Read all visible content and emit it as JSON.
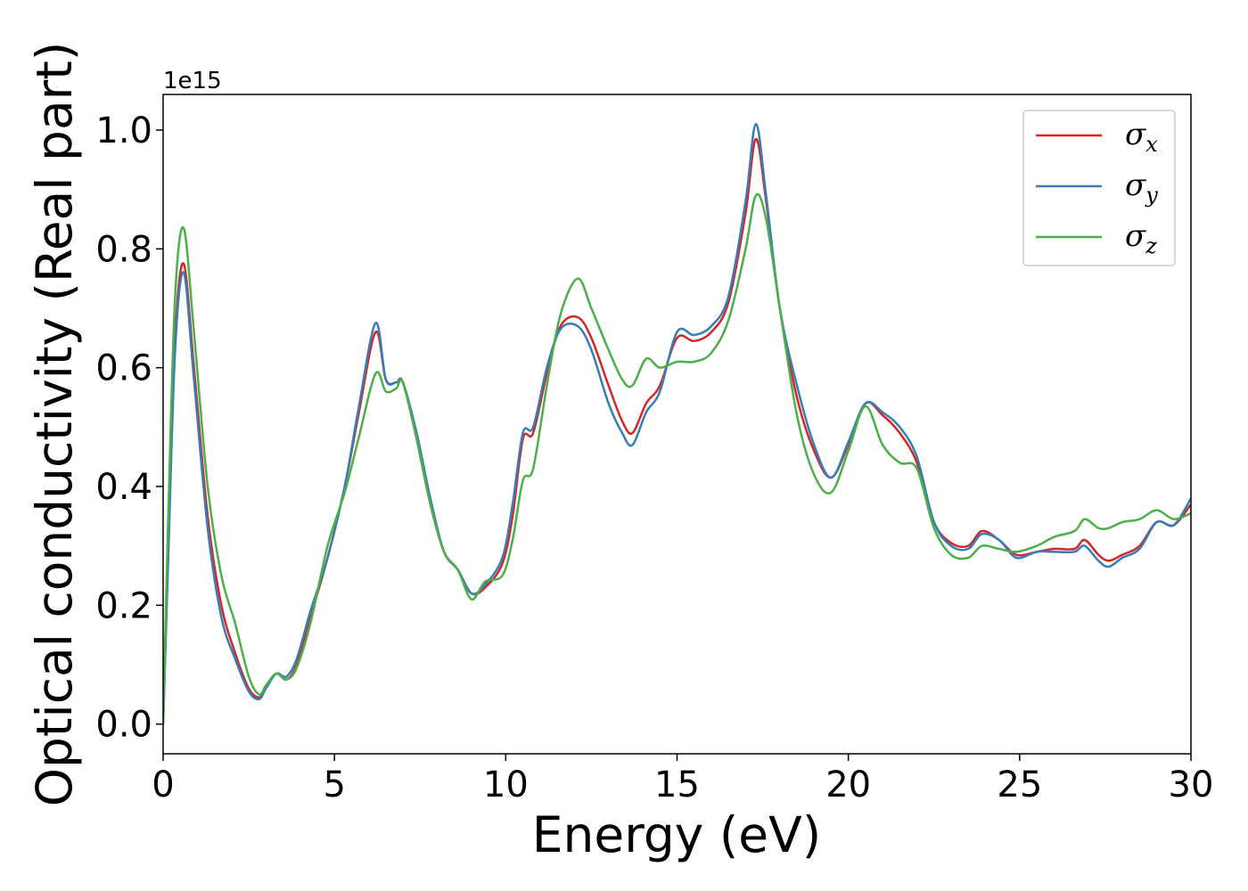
{
  "chart_data": {
    "type": "line",
    "title": "",
    "xlabel": "Energy (eV)",
    "ylabel": "Optical conductivity (Real part)",
    "y_offset_label": "1e15",
    "xlim": [
      0,
      30
    ],
    "ylim": [
      -0.05,
      1.06
    ],
    "x_ticks": [
      0,
      5,
      10,
      15,
      20,
      25,
      30
    ],
    "x_tick_labels": [
      "0",
      "5",
      "10",
      "15",
      "20",
      "25",
      "30"
    ],
    "y_ticks": [
      0.0,
      0.2,
      0.4,
      0.6,
      0.8,
      1.0
    ],
    "y_tick_labels": [
      "0.0",
      "0.2",
      "0.4",
      "0.6",
      "0.8",
      "1.0"
    ],
    "grid": false,
    "legend_position": "top-right",
    "series": [
      {
        "name": "σ_x",
        "legend_base": "σ",
        "legend_sub": "x",
        "color": "#d62728",
        "points": [
          [
            0,
            0
          ],
          [
            0.15,
            0.3
          ],
          [
            0.35,
            0.65
          ],
          [
            0.6,
            0.775
          ],
          [
            0.9,
            0.6
          ],
          [
            1.3,
            0.35
          ],
          [
            1.7,
            0.2
          ],
          [
            2.1,
            0.12
          ],
          [
            2.5,
            0.06
          ],
          [
            2.8,
            0.045
          ],
          [
            3.0,
            0.06
          ],
          [
            3.3,
            0.085
          ],
          [
            3.6,
            0.075
          ],
          [
            3.9,
            0.1
          ],
          [
            4.3,
            0.18
          ],
          [
            4.8,
            0.28
          ],
          [
            5.3,
            0.4
          ],
          [
            5.7,
            0.52
          ],
          [
            6.2,
            0.66
          ],
          [
            6.5,
            0.58
          ],
          [
            6.8,
            0.575
          ],
          [
            7.0,
            0.575
          ],
          [
            7.4,
            0.48
          ],
          [
            7.8,
            0.37
          ],
          [
            8.2,
            0.29
          ],
          [
            8.6,
            0.26
          ],
          [
            9.0,
            0.22
          ],
          [
            9.4,
            0.23
          ],
          [
            9.9,
            0.27
          ],
          [
            10.2,
            0.35
          ],
          [
            10.5,
            0.48
          ],
          [
            10.8,
            0.49
          ],
          [
            11.2,
            0.59
          ],
          [
            11.6,
            0.67
          ],
          [
            12.1,
            0.685
          ],
          [
            12.5,
            0.65
          ],
          [
            13.0,
            0.57
          ],
          [
            13.4,
            0.51
          ],
          [
            13.7,
            0.49
          ],
          [
            14.1,
            0.54
          ],
          [
            14.5,
            0.57
          ],
          [
            15.0,
            0.65
          ],
          [
            15.5,
            0.645
          ],
          [
            16.0,
            0.66
          ],
          [
            16.5,
            0.71
          ],
          [
            17.0,
            0.86
          ],
          [
            17.3,
            0.985
          ],
          [
            17.6,
            0.88
          ],
          [
            18.0,
            0.7
          ],
          [
            18.5,
            0.55
          ],
          [
            19.0,
            0.46
          ],
          [
            19.5,
            0.415
          ],
          [
            20.0,
            0.47
          ],
          [
            20.5,
            0.54
          ],
          [
            21.0,
            0.52
          ],
          [
            21.5,
            0.49
          ],
          [
            22.0,
            0.44
          ],
          [
            22.5,
            0.34
          ],
          [
            23.0,
            0.305
          ],
          [
            23.5,
            0.3
          ],
          [
            23.9,
            0.325
          ],
          [
            24.4,
            0.31
          ],
          [
            24.9,
            0.285
          ],
          [
            25.5,
            0.29
          ],
          [
            26.0,
            0.295
          ],
          [
            26.6,
            0.295
          ],
          [
            26.9,
            0.31
          ],
          [
            27.3,
            0.285
          ],
          [
            27.6,
            0.275
          ],
          [
            28.0,
            0.285
          ],
          [
            28.5,
            0.3
          ],
          [
            29.0,
            0.34
          ],
          [
            29.5,
            0.335
          ],
          [
            30.0,
            0.37
          ]
        ]
      },
      {
        "name": "σ_y",
        "legend_base": "σ",
        "legend_sub": "y",
        "color": "#377eb8",
        "points": [
          [
            0,
            0
          ],
          [
            0.15,
            0.28
          ],
          [
            0.35,
            0.63
          ],
          [
            0.6,
            0.76
          ],
          [
            0.9,
            0.58
          ],
          [
            1.3,
            0.33
          ],
          [
            1.7,
            0.18
          ],
          [
            2.1,
            0.11
          ],
          [
            2.5,
            0.055
          ],
          [
            2.8,
            0.042
          ],
          [
            3.0,
            0.06
          ],
          [
            3.3,
            0.085
          ],
          [
            3.6,
            0.08
          ],
          [
            3.9,
            0.11
          ],
          [
            4.3,
            0.19
          ],
          [
            4.8,
            0.28
          ],
          [
            5.3,
            0.4
          ],
          [
            5.7,
            0.53
          ],
          [
            6.2,
            0.675
          ],
          [
            6.5,
            0.58
          ],
          [
            6.8,
            0.575
          ],
          [
            7.0,
            0.575
          ],
          [
            7.4,
            0.49
          ],
          [
            7.8,
            0.38
          ],
          [
            8.2,
            0.29
          ],
          [
            8.6,
            0.26
          ],
          [
            9.0,
            0.22
          ],
          [
            9.4,
            0.235
          ],
          [
            9.9,
            0.28
          ],
          [
            10.2,
            0.37
          ],
          [
            10.5,
            0.49
          ],
          [
            10.8,
            0.5
          ],
          [
            11.2,
            0.6
          ],
          [
            11.6,
            0.665
          ],
          [
            12.1,
            0.67
          ],
          [
            12.5,
            0.63
          ],
          [
            13.0,
            0.54
          ],
          [
            13.4,
            0.49
          ],
          [
            13.7,
            0.47
          ],
          [
            14.1,
            0.525
          ],
          [
            14.5,
            0.56
          ],
          [
            15.0,
            0.66
          ],
          [
            15.5,
            0.655
          ],
          [
            16.0,
            0.67
          ],
          [
            16.5,
            0.72
          ],
          [
            17.0,
            0.88
          ],
          [
            17.3,
            1.01
          ],
          [
            17.6,
            0.89
          ],
          [
            18.0,
            0.7
          ],
          [
            18.5,
            0.57
          ],
          [
            19.0,
            0.47
          ],
          [
            19.5,
            0.415
          ],
          [
            20.0,
            0.475
          ],
          [
            20.5,
            0.54
          ],
          [
            21.0,
            0.525
          ],
          [
            21.5,
            0.5
          ],
          [
            22.0,
            0.45
          ],
          [
            22.5,
            0.34
          ],
          [
            23.0,
            0.3
          ],
          [
            23.5,
            0.295
          ],
          [
            23.9,
            0.32
          ],
          [
            24.4,
            0.31
          ],
          [
            24.9,
            0.28
          ],
          [
            25.5,
            0.29
          ],
          [
            26.0,
            0.29
          ],
          [
            26.6,
            0.29
          ],
          [
            26.9,
            0.3
          ],
          [
            27.3,
            0.275
          ],
          [
            27.6,
            0.265
          ],
          [
            28.0,
            0.28
          ],
          [
            28.5,
            0.295
          ],
          [
            29.0,
            0.34
          ],
          [
            29.5,
            0.335
          ],
          [
            30.0,
            0.38
          ]
        ]
      },
      {
        "name": "σ_z",
        "legend_base": "σ",
        "legend_sub": "z",
        "color": "#4daf4a",
        "points": [
          [
            0,
            0
          ],
          [
            0.15,
            0.35
          ],
          [
            0.35,
            0.72
          ],
          [
            0.6,
            0.835
          ],
          [
            0.9,
            0.66
          ],
          [
            1.3,
            0.4
          ],
          [
            1.7,
            0.25
          ],
          [
            2.1,
            0.17
          ],
          [
            2.5,
            0.08
          ],
          [
            2.8,
            0.05
          ],
          [
            3.0,
            0.065
          ],
          [
            3.3,
            0.085
          ],
          [
            3.6,
            0.075
          ],
          [
            3.9,
            0.095
          ],
          [
            4.3,
            0.17
          ],
          [
            4.8,
            0.3
          ],
          [
            5.3,
            0.39
          ],
          [
            5.7,
            0.48
          ],
          [
            6.2,
            0.59
          ],
          [
            6.5,
            0.56
          ],
          [
            6.8,
            0.565
          ],
          [
            7.0,
            0.575
          ],
          [
            7.4,
            0.48
          ],
          [
            7.8,
            0.37
          ],
          [
            8.2,
            0.29
          ],
          [
            8.6,
            0.26
          ],
          [
            9.0,
            0.21
          ],
          [
            9.4,
            0.24
          ],
          [
            9.9,
            0.25
          ],
          [
            10.2,
            0.31
          ],
          [
            10.5,
            0.41
          ],
          [
            10.8,
            0.43
          ],
          [
            11.2,
            0.57
          ],
          [
            11.6,
            0.69
          ],
          [
            12.1,
            0.75
          ],
          [
            12.5,
            0.7
          ],
          [
            13.0,
            0.63
          ],
          [
            13.4,
            0.58
          ],
          [
            13.7,
            0.57
          ],
          [
            14.1,
            0.615
          ],
          [
            14.5,
            0.6
          ],
          [
            15.0,
            0.61
          ],
          [
            15.5,
            0.61
          ],
          [
            16.0,
            0.625
          ],
          [
            16.5,
            0.68
          ],
          [
            17.0,
            0.8
          ],
          [
            17.3,
            0.89
          ],
          [
            17.6,
            0.85
          ],
          [
            18.0,
            0.7
          ],
          [
            18.5,
            0.52
          ],
          [
            19.0,
            0.42
          ],
          [
            19.5,
            0.39
          ],
          [
            20.0,
            0.46
          ],
          [
            20.5,
            0.535
          ],
          [
            21.0,
            0.47
          ],
          [
            21.5,
            0.44
          ],
          [
            22.0,
            0.43
          ],
          [
            22.5,
            0.33
          ],
          [
            23.0,
            0.285
          ],
          [
            23.5,
            0.28
          ],
          [
            23.9,
            0.3
          ],
          [
            24.4,
            0.295
          ],
          [
            24.9,
            0.29
          ],
          [
            25.5,
            0.3
          ],
          [
            26.0,
            0.315
          ],
          [
            26.6,
            0.325
          ],
          [
            26.9,
            0.345
          ],
          [
            27.3,
            0.33
          ],
          [
            27.6,
            0.33
          ],
          [
            28.0,
            0.34
          ],
          [
            28.5,
            0.345
          ],
          [
            29.0,
            0.36
          ],
          [
            29.5,
            0.345
          ],
          [
            30.0,
            0.355
          ]
        ]
      }
    ]
  }
}
